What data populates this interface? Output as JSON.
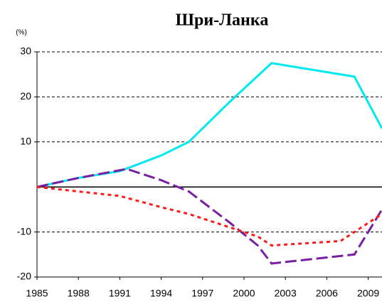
{
  "chart_data": {
    "type": "line",
    "title": "Шри-Ланка",
    "y_label": "(%)",
    "xlim": [
      1985,
      2010
    ],
    "xticks": [
      1985,
      1988,
      1991,
      1994,
      1997,
      2000,
      2003,
      2006,
      2009
    ],
    "ylim": [
      -20,
      30
    ],
    "yticks": [
      -20,
      -10,
      10,
      20,
      30
    ],
    "grid": true,
    "series": [
      {
        "color": "#00e8f0",
        "line_style": "solid",
        "x": [
          1985,
          1988,
          1991,
          1994,
          1996,
          1999,
          2002,
          2008,
          2010
        ],
        "values": [
          0,
          2,
          3.5,
          7,
          10,
          19,
          27.5,
          24.5,
          13
        ]
      },
      {
        "color": "#7b1fa2",
        "line_style": "dashed",
        "x": [
          1985,
          1988,
          1991.5,
          1994,
          1996,
          1999,
          2001,
          2002,
          2008,
          2010
        ],
        "values": [
          0,
          2,
          4,
          1.5,
          -1,
          -8,
          -13,
          -17,
          -15,
          -5
        ]
      },
      {
        "color": "#ff1a1a",
        "line_style": "dotted",
        "x": [
          1985,
          1988,
          1991,
          1994,
          1996,
          1999,
          2001,
          2002,
          2007,
          2010
        ],
        "values": [
          0,
          -1,
          -2,
          -4.5,
          -6,
          -9,
          -11,
          -13,
          -12,
          -6
        ]
      }
    ]
  }
}
